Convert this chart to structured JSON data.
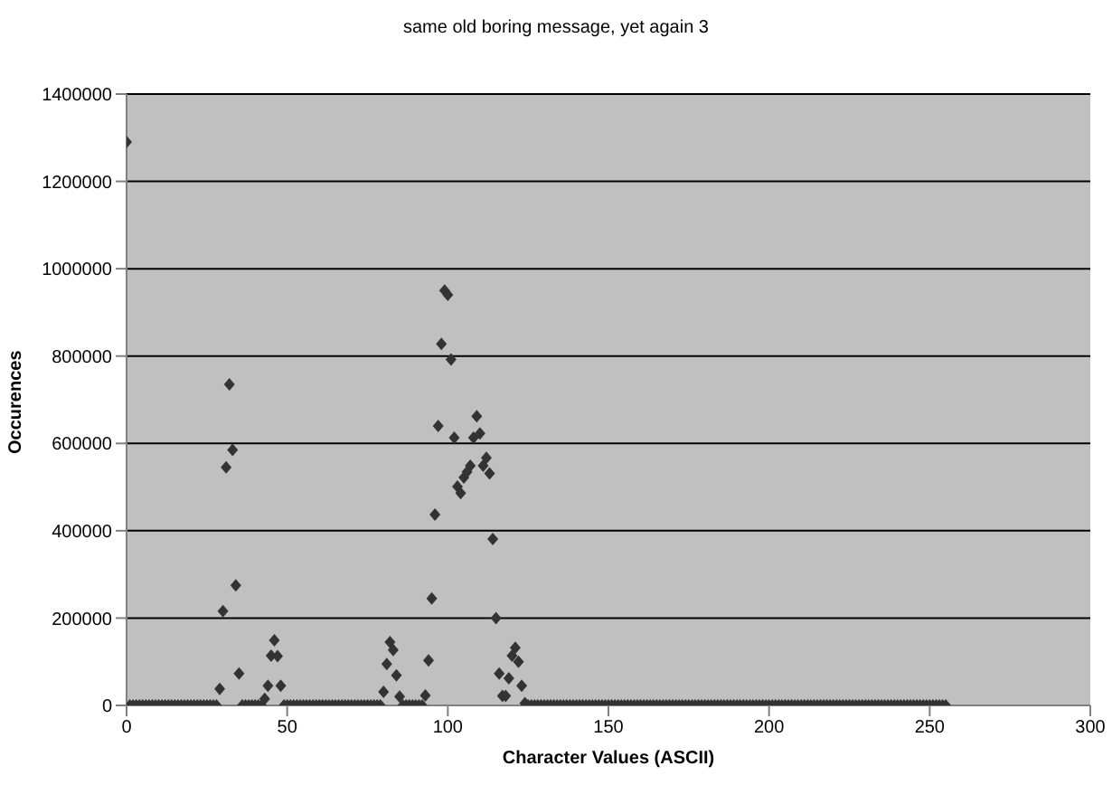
{
  "chart_data": {
    "type": "scatter",
    "title": "same old boring message, yet again 3",
    "xlabel": "Character Values (ASCII)",
    "ylabel": "Occurences",
    "xlim": [
      0,
      300
    ],
    "xticks": [
      0,
      50,
      100,
      150,
      200,
      250,
      300
    ],
    "ylim": [
      0,
      1400000
    ],
    "yticks": [
      0,
      200000,
      400000,
      600000,
      800000,
      1000000,
      1200000,
      1400000
    ],
    "grid": "y",
    "marker": "diamond",
    "legend": false,
    "x": [
      0,
      1,
      2,
      3,
      4,
      5,
      6,
      7,
      8,
      9,
      10,
      11,
      12,
      13,
      14,
      15,
      16,
      17,
      18,
      19,
      20,
      21,
      22,
      23,
      24,
      25,
      26,
      27,
      28,
      29,
      30,
      31,
      32,
      33,
      34,
      35,
      36,
      37,
      38,
      39,
      40,
      41,
      42,
      43,
      44,
      45,
      46,
      47,
      48,
      49,
      50,
      51,
      52,
      53,
      54,
      55,
      56,
      57,
      58,
      59,
      60,
      61,
      62,
      63,
      64,
      65,
      66,
      67,
      68,
      69,
      70,
      71,
      72,
      73,
      74,
      75,
      76,
      77,
      78,
      79,
      80,
      81,
      82,
      83,
      84,
      85,
      86,
      87,
      88,
      89,
      90,
      91,
      92,
      93,
      94,
      95,
      96,
      97,
      98,
      99,
      100,
      101,
      102,
      103,
      104,
      105,
      106,
      107,
      108,
      109,
      110,
      111,
      112,
      113,
      114,
      115,
      116,
      117,
      118,
      119,
      120,
      121,
      122,
      123,
      124,
      125,
      126,
      127,
      128,
      129,
      130,
      131,
      132,
      133,
      134,
      135,
      136,
      137,
      138,
      139,
      140,
      141,
      142,
      143,
      144,
      145,
      146,
      147,
      148,
      149,
      150,
      151,
      152,
      153,
      154,
      155,
      156,
      157,
      158,
      159,
      160,
      161,
      162,
      163,
      164,
      165,
      166,
      167,
      168,
      169,
      170,
      171,
      172,
      173,
      174,
      175,
      176,
      177,
      178,
      179,
      180,
      181,
      182,
      183,
      184,
      185,
      186,
      187,
      188,
      189,
      190,
      191,
      192,
      193,
      194,
      195,
      196,
      197,
      198,
      199,
      200,
      201,
      202,
      203,
      204,
      205,
      206,
      207,
      208,
      209,
      210,
      211,
      212,
      213,
      214,
      215,
      216,
      217,
      218,
      219,
      220,
      221,
      222,
      223,
      224,
      225,
      226,
      227,
      228,
      229,
      230,
      231,
      232,
      233,
      234,
      235,
      236,
      237,
      238,
      239,
      240,
      241,
      242,
      243,
      244,
      245,
      246,
      247,
      248,
      249,
      250,
      251,
      252,
      253,
      254,
      255
    ],
    "series": [
      {
        "color": "#333333",
        "values": [
          1290000,
          0,
          0,
          0,
          0,
          0,
          0,
          0,
          0,
          0,
          0,
          0,
          0,
          0,
          0,
          0,
          0,
          0,
          0,
          0,
          0,
          0,
          0,
          0,
          0,
          0,
          0,
          0,
          0,
          38000,
          216000,
          545000,
          735000,
          585000,
          275000,
          73000,
          0,
          0,
          0,
          0,
          0,
          0,
          0,
          15000,
          45000,
          114000,
          149000,
          113000,
          45000,
          0,
          0,
          0,
          0,
          0,
          0,
          0,
          0,
          0,
          0,
          0,
          0,
          0,
          0,
          0,
          0,
          0,
          0,
          0,
          0,
          0,
          0,
          0,
          0,
          0,
          0,
          0,
          0,
          0,
          0,
          0,
          31000,
          95000,
          145000,
          127000,
          69000,
          20000,
          0,
          0,
          0,
          0,
          0,
          0,
          0,
          23000,
          103000,
          245000,
          437000,
          640000,
          828000,
          950000,
          940000,
          792000,
          613000,
          501000,
          486000,
          522000,
          535000,
          549000,
          613000,
          662000,
          623000,
          549000,
          567000,
          531000,
          381000,
          200000,
          73000,
          22000,
          22000,
          62000,
          114000,
          132000,
          100000,
          45000,
          5000,
          0,
          0,
          0,
          0,
          0,
          0,
          0,
          0,
          0,
          0,
          0,
          0,
          0,
          0,
          0,
          0,
          0,
          0,
          0,
          0,
          0,
          0,
          0,
          0,
          0,
          0,
          0,
          0,
          0,
          0,
          0,
          0,
          0,
          0,
          0,
          0,
          0,
          0,
          0,
          0,
          0,
          0,
          0,
          0,
          0,
          0,
          0,
          0,
          0,
          0,
          0,
          0,
          0,
          0,
          0,
          0,
          0,
          0,
          0,
          0,
          0,
          0,
          0,
          0,
          0,
          0,
          0,
          0,
          0,
          0,
          0,
          0,
          0,
          0,
          0,
          0,
          0,
          0,
          0,
          0,
          0,
          0,
          0,
          0,
          0,
          0,
          0,
          0,
          0,
          0,
          0,
          0,
          0,
          0,
          0,
          0,
          0,
          0,
          0,
          0,
          0,
          0,
          0,
          0,
          0,
          0,
          0,
          0,
          0,
          0,
          0,
          0,
          0,
          0,
          0,
          0,
          0,
          0,
          0,
          0,
          0,
          0,
          0,
          0,
          0,
          0,
          0,
          0,
          0,
          0,
          0
        ]
      }
    ]
  }
}
